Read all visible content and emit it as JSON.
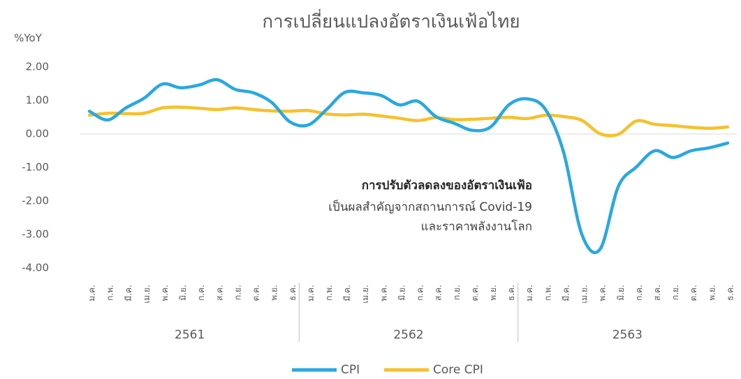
{
  "chart_data": {
    "type": "line",
    "title": "การเปลี่ยนแปลงอัตราเงินเฟ้อไทย",
    "y_axis_label": "%YoY",
    "categories": [
      "ม.ค.",
      "ก.พ.",
      "มี.ค.",
      "เม.ย.",
      "พ.ค.",
      "มิ.ย.",
      "ก.ค.",
      "ส.ค.",
      "ก.ย.",
      "ต.ค.",
      "พ.ย.",
      "ธ.ค.",
      "ม.ค.",
      "ก.พ.",
      "มี.ค.",
      "เม.ย.",
      "พ.ค.",
      "มิ.ย.",
      "ก.ค.",
      "ส.ค.",
      "ก.ย.",
      "ต.ค.",
      "พ.ย.",
      "ธ.ค.",
      "ม.ค.",
      "ก.พ.",
      "มี.ค.",
      "เม.ย.",
      "พ.ค.",
      "มิ.ย.",
      "ก.ค.",
      "ส.ค.",
      "ก.ย.",
      "ต.ค.",
      "พ.ย.",
      "ธ.ค."
    ],
    "year_groups": [
      "2561",
      "2562",
      "2563"
    ],
    "series": [
      {
        "name": "CPI",
        "color": "#29a8e0",
        "values": [
          0.68,
          0.42,
          0.78,
          1.07,
          1.49,
          1.38,
          1.46,
          1.62,
          1.33,
          1.23,
          0.94,
          0.36,
          0.27,
          0.73,
          1.24,
          1.23,
          1.15,
          0.87,
          0.98,
          0.52,
          0.32,
          0.11,
          0.21,
          0.87,
          1.05,
          0.74,
          -0.54,
          -2.99,
          -3.44,
          -1.57,
          -0.98,
          -0.5,
          -0.7,
          -0.5,
          -0.41,
          -0.27
        ]
      },
      {
        "name": "Core CPI",
        "color": "#f5c12e",
        "values": [
          0.56,
          0.62,
          0.61,
          0.62,
          0.78,
          0.8,
          0.77,
          0.73,
          0.78,
          0.73,
          0.69,
          0.68,
          0.7,
          0.6,
          0.57,
          0.59,
          0.54,
          0.47,
          0.4,
          0.49,
          0.43,
          0.44,
          0.47,
          0.5,
          0.46,
          0.56,
          0.52,
          0.41,
          0.01,
          -0.01,
          0.39,
          0.29,
          0.25,
          0.2,
          0.17,
          0.21
        ]
      }
    ],
    "ylim": [
      -4,
      2
    ],
    "yticks": [
      {
        "value": 2,
        "label": "2.00"
      },
      {
        "value": 1,
        "label": "1.00"
      },
      {
        "value": 0,
        "label": "0.00"
      },
      {
        "value": -1,
        "label": "-1.00"
      },
      {
        "value": -2,
        "label": "-2.00"
      },
      {
        "value": -3,
        "label": "-3.00"
      },
      {
        "value": -4,
        "label": "-4.00"
      }
    ],
    "annotation": [
      "การปรับตัวลดลงของอัตราเงินเฟ้อ",
      "เป็นผลสำคัญจากสถานการณ์ Covid-19",
      "และราคาพลังงานโลก"
    ],
    "legend": "bottom"
  }
}
